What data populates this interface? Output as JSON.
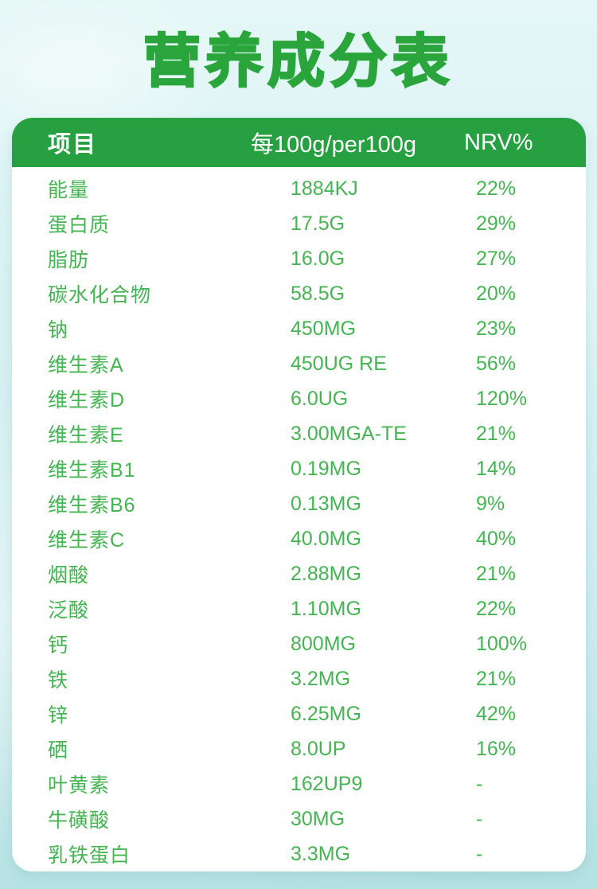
{
  "page": {
    "title": "营养成分表"
  },
  "colors": {
    "title_green": "#2aa53c",
    "header_green": "#27a041",
    "row_text_green": "#45b452",
    "background_cyan": "#d2eef1",
    "card_white": "#ffffff"
  },
  "table": {
    "headers": [
      "项目",
      "每100g/per100g",
      "NRV%"
    ],
    "rows": [
      {
        "item": "能量",
        "per100g": "1884KJ",
        "nrv": "22%"
      },
      {
        "item": "蛋白质",
        "per100g": "17.5G",
        "nrv": "29%"
      },
      {
        "item": "脂肪",
        "per100g": "16.0G",
        "nrv": "27%"
      },
      {
        "item": "碳水化合物",
        "per100g": "58.5G",
        "nrv": "20%"
      },
      {
        "item": "钠",
        "per100g": "450MG",
        "nrv": "23%"
      },
      {
        "item": "维生素A",
        "per100g": "450UG RE",
        "nrv": "56%"
      },
      {
        "item": "维生素D",
        "per100g": "6.0UG",
        "nrv": "120%"
      },
      {
        "item": "维生素E",
        "per100g": "3.00MGA-TE",
        "nrv": "21%"
      },
      {
        "item": "维生素B1",
        "per100g": "0.19MG",
        "nrv": "14%"
      },
      {
        "item": "维生素B6",
        "per100g": "0.13MG",
        "nrv": "9%"
      },
      {
        "item": "维生素C",
        "per100g": "40.0MG",
        "nrv": "40%"
      },
      {
        "item": "烟酸",
        "per100g": "2.88MG",
        "nrv": "21%"
      },
      {
        "item": "泛酸",
        "per100g": "1.10MG",
        "nrv": "22%"
      },
      {
        "item": "钙",
        "per100g": "800MG",
        "nrv": "100%"
      },
      {
        "item": "铁",
        "per100g": "3.2MG",
        "nrv": "21%"
      },
      {
        "item": "锌",
        "per100g": "6.25MG",
        "nrv": "42%"
      },
      {
        "item": "硒",
        "per100g": "8.0UP",
        "nrv": "16%"
      },
      {
        "item": "叶黄素",
        "per100g": "162UP9",
        "nrv": "-"
      },
      {
        "item": "牛磺酸",
        "per100g": "30MG",
        "nrv": "-"
      },
      {
        "item": "乳铁蛋白",
        "per100g": "3.3MG",
        "nrv": "-"
      }
    ]
  }
}
